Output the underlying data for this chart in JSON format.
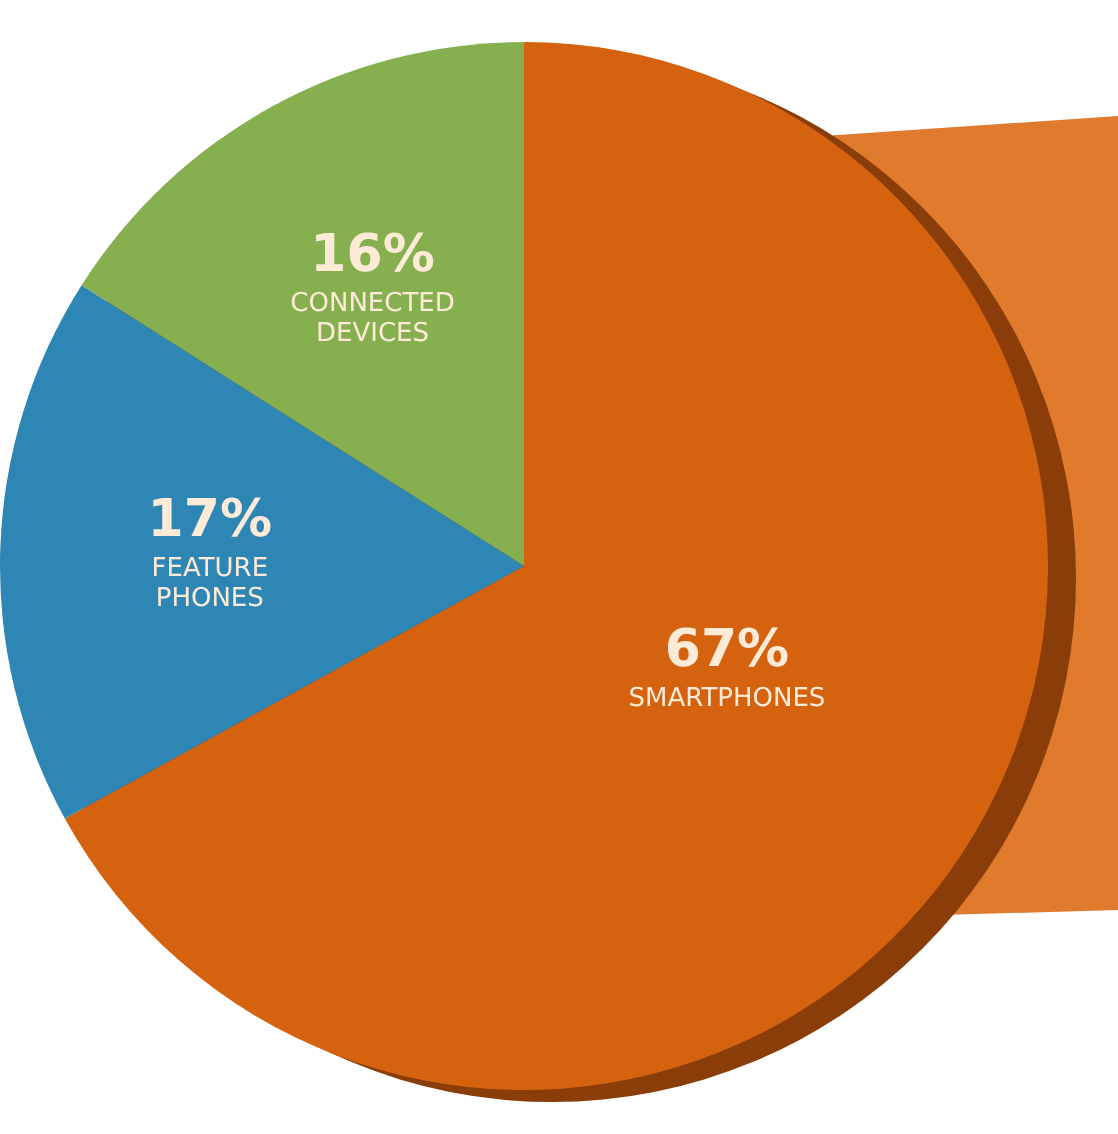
{
  "chart_data": {
    "type": "pie",
    "categories": [
      "SMARTPHONES",
      "FEATURE PHONES",
      "CONNECTED DEVICES"
    ],
    "values": [
      67,
      17,
      16
    ],
    "colors": [
      "#d5620f",
      "#2e86b5",
      "#86b04f"
    ],
    "value_labels": [
      "67%",
      "17%",
      "16%"
    ]
  }
}
